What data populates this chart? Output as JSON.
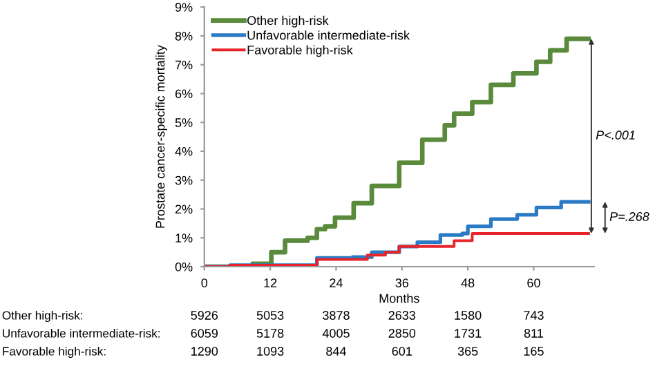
{
  "chart_data": {
    "type": "step",
    "xlabel": "Months",
    "ylabel": "Prostate cancer-specific mortality",
    "xlim": [
      0,
      71
    ],
    "xticks": [
      0,
      12,
      24,
      36,
      48,
      60
    ],
    "ylim": [
      0,
      9
    ],
    "yticks": [
      {
        "value": 0,
        "label": "0%"
      },
      {
        "value": 1,
        "label": "1%"
      },
      {
        "value": 2,
        "label": "2%"
      },
      {
        "value": 3,
        "label": "3%"
      },
      {
        "value": 4,
        "label": "4%"
      },
      {
        "value": 5,
        "label": "5%"
      },
      {
        "value": 6,
        "label": "6%"
      },
      {
        "value": 7,
        "label": "7%"
      },
      {
        "value": 8,
        "label": "8%"
      },
      {
        "value": 9,
        "label": "9%"
      }
    ],
    "legend": "top left",
    "grid": false,
    "series": [
      {
        "name": "Other high-risk",
        "color": "#5a8a3c",
        "x": [
          0,
          8.8,
          12.2,
          14.7,
          18.8,
          20.5,
          22,
          23.8,
          27.2,
          30.5,
          35.5,
          39.7,
          43.8,
          45.5,
          48.8,
          52.2,
          56.3,
          60.5,
          63,
          65,
          66,
          70
        ],
        "values": [
          0,
          0.1,
          0.5,
          0.9,
          1.0,
          1.3,
          1.4,
          1.7,
          2.2,
          2.8,
          3.6,
          4.4,
          4.9,
          5.3,
          5.7,
          6.3,
          6.7,
          7.1,
          7.5,
          7.5,
          7.9,
          7.9
        ]
      },
      {
        "name": "Unfavorable intermediate-risk",
        "color": "#2a7bc4",
        "x": [
          0,
          4.7,
          20.5,
          27,
          30.5,
          35.5,
          38.8,
          43,
          47,
          48,
          52.2,
          57,
          60.5,
          64,
          65,
          70
        ],
        "values": [
          0,
          0.05,
          0.3,
          0.33,
          0.5,
          0.7,
          0.85,
          1.1,
          1.15,
          1.4,
          1.65,
          1.8,
          2.05,
          2.05,
          2.25,
          2.25
        ]
      },
      {
        "name": "Favorable high-risk",
        "color": "#e8232a",
        "x": [
          0,
          4.7,
          20.5,
          28.8,
          29.7,
          33,
          35.5,
          45,
          45.5,
          48,
          48.8,
          70
        ],
        "values": [
          0,
          0.05,
          0.25,
          0.25,
          0.4,
          0.5,
          0.7,
          0.7,
          0.9,
          0.9,
          1.15,
          1.15
        ]
      }
    ],
    "annotations": [
      "P<.001",
      "P=.268",
      "Other high-risk:",
      "5926",
      "5053",
      "3878",
      "2633",
      "1580",
      "743",
      "Unfavorable intermediate-risk:",
      "6059",
      "5178",
      "4005",
      "2850",
      "1731",
      "811",
      "Favorable high-risk:",
      "1290",
      "1093",
      "844",
      "601",
      "365",
      "165"
    ]
  }
}
